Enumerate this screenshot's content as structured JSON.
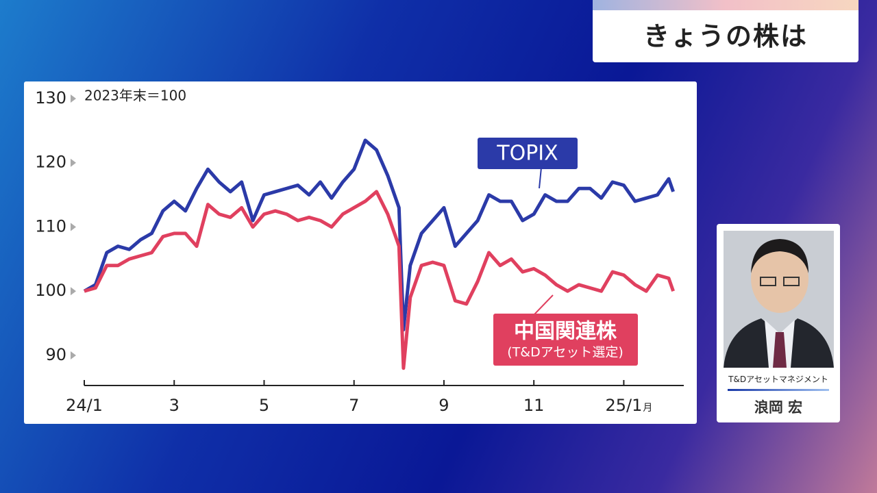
{
  "header": {
    "title": "きょうの株は"
  },
  "chart_data": {
    "type": "line",
    "unit_note": "2023年末＝100",
    "x_unit": "月",
    "x": [
      0,
      0.25,
      0.5,
      0.75,
      1.0,
      1.25,
      1.5,
      1.75,
      2.0,
      2.25,
      2.5,
      2.75,
      3.0,
      3.25,
      3.5,
      3.75,
      4.0,
      4.25,
      4.5,
      4.75,
      5.0,
      5.25,
      5.5,
      5.75,
      6.0,
      6.25,
      6.5,
      6.75,
      7.0,
      7.1,
      7.25,
      7.5,
      7.75,
      8.0,
      8.25,
      8.5,
      8.75,
      9.0,
      9.25,
      9.5,
      9.75,
      10.0,
      10.25,
      10.5,
      10.75,
      11.0,
      11.25,
      11.5,
      11.75,
      12.0,
      12.25,
      12.5,
      12.75,
      13.0,
      13.1
    ],
    "series": [
      {
        "name": "TOPIX",
        "color": "#2b3aa8",
        "values": [
          100,
          101,
          106,
          107,
          106.5,
          108,
          109,
          112.5,
          114,
          112.5,
          116,
          119,
          117,
          115.5,
          117,
          111,
          115,
          115.5,
          116,
          116.5,
          115,
          117,
          114.5,
          117,
          119,
          123.5,
          122,
          118,
          113,
          94,
          104,
          109,
          111,
          113,
          107,
          109,
          111,
          115,
          114,
          114,
          111,
          112,
          115,
          114,
          114,
          116,
          116,
          114.5,
          117,
          116.5,
          114,
          114.5,
          115,
          117.5,
          115.5
        ]
      },
      {
        "name": "中国関連株",
        "subname": "(T&Dアセット選定)",
        "color": "#e0405f",
        "values": [
          100,
          100.5,
          104,
          104,
          105,
          105.5,
          106,
          108.5,
          109,
          109,
          107,
          113.5,
          112,
          111.5,
          113,
          110,
          112,
          112.5,
          112,
          111,
          111.5,
          111,
          110,
          112,
          113,
          114,
          115.5,
          112,
          107,
          88,
          99,
          104,
          104.5,
          104,
          98.5,
          98,
          101.5,
          106,
          104,
          105,
          103,
          103.5,
          102.5,
          101,
          100,
          101,
          100.5,
          100,
          103,
          102.5,
          101,
          100,
          102.5,
          102,
          100
        ]
      }
    ],
    "xlim": [
      0,
      13.35
    ],
    "ylim": [
      85.3,
      130
    ],
    "xticks": [
      {
        "value": 0,
        "label": "24/1"
      },
      {
        "value": 2,
        "label": "3"
      },
      {
        "value": 4,
        "label": "5"
      },
      {
        "value": 6,
        "label": "7"
      },
      {
        "value": 8,
        "label": "9"
      },
      {
        "value": 10,
        "label": "11"
      },
      {
        "value": 12,
        "label": "25/1"
      }
    ],
    "yticks": [
      90,
      100,
      110,
      120,
      130
    ]
  },
  "guest": {
    "company": "T&Dアセットマネジメント",
    "name": "浪岡 宏"
  }
}
